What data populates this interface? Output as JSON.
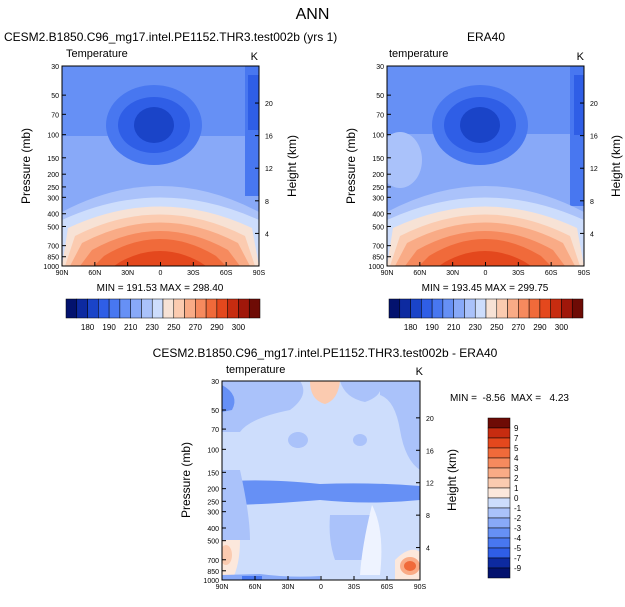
{
  "page": {
    "title": "ANN"
  },
  "colors": {
    "temp_scale": [
      "#03126e",
      "#0d2aa0",
      "#1a44c8",
      "#2f5ee6",
      "#4877f0",
      "#6690f5",
      "#88a9f8",
      "#aac2fa",
      "#cdddfc",
      "#f7e2d5",
      "#fbcbb0",
      "#f9ab86",
      "#f68a5e",
      "#f06a3a",
      "#e4481d",
      "#c72c10",
      "#a0170a",
      "#6e0b05"
    ],
    "diff_scale": [
      "#03126e",
      "#0d2aa0",
      "#1a44c8",
      "#2f5ee6",
      "#4877f0",
      "#6690f5",
      "#88a9f8",
      "#aac2fa",
      "#cdddfc",
      "#eef3ff",
      "#fce8dc",
      "#fbcbb0",
      "#f9ab86",
      "#f68a5e",
      "#f06a3a",
      "#e4481d",
      "#c72c10",
      "#6e0b05"
    ]
  },
  "chart_data": [
    {
      "type": "contour",
      "title": "CESM2.B1850.C96_mg17.intel.PE1152.THR3.test002b (yrs 1)",
      "subtitle": "Temperature",
      "units": "K",
      "xlabel": "",
      "ylabel": "Pressure (mb)",
      "ylabel_right": "Height (km)",
      "x_ticks": [
        "90N",
        "60N",
        "30N",
        "0",
        "30S",
        "60S",
        "90S"
      ],
      "y_ticks": [
        "30",
        "50",
        "70",
        "100",
        "150",
        "200",
        "250",
        "300",
        "400",
        "500",
        "700",
        "850",
        "1000"
      ],
      "height_ticks": [
        "20",
        "16",
        "12",
        "8",
        "4"
      ],
      "min_max": "MIN = 191.53  MAX = 298.40",
      "colorbar_labels": [
        "180",
        "190",
        "210",
        "230",
        "250",
        "270",
        "290",
        "300"
      ]
    },
    {
      "type": "contour",
      "title": "ERA40",
      "subtitle": "temperature",
      "units": "K",
      "xlabel": "",
      "ylabel": "Pressure (mb)",
      "ylabel_right": "Height (km)",
      "x_ticks": [
        "90N",
        "60N",
        "30N",
        "0",
        "30S",
        "60S",
        "90S"
      ],
      "y_ticks": [
        "30",
        "50",
        "70",
        "100",
        "150",
        "200",
        "250",
        "300",
        "400",
        "500",
        "700",
        "850",
        "1000"
      ],
      "height_ticks": [
        "20",
        "16",
        "12",
        "8",
        "4"
      ],
      "min_max": "MIN = 193.45  MAX = 299.75",
      "colorbar_labels": [
        "180",
        "190",
        "210",
        "230",
        "250",
        "270",
        "290",
        "300"
      ]
    },
    {
      "type": "contour",
      "title": "CESM2.B1850.C96_mg17.intel.PE1152.THR3.test002b - ERA40",
      "subtitle": "temperature",
      "units": "K",
      "xlabel": "",
      "ylabel": "Pressure (mb)",
      "ylabel_right": "Height (km)",
      "x_ticks": [
        "90N",
        "60N",
        "30N",
        "0",
        "30S",
        "60S",
        "90S"
      ],
      "y_ticks": [
        "30",
        "50",
        "70",
        "100",
        "150",
        "200",
        "250",
        "300",
        "400",
        "500",
        "700",
        "850",
        "1000"
      ],
      "height_ticks": [
        "20",
        "16",
        "12",
        "8",
        "4"
      ],
      "min_max": "MIN =  -8.56  MAX =   4.23",
      "colorbar_labels": [
        "9",
        "7",
        "5",
        "4",
        "3",
        "2",
        "1",
        "0",
        "-1",
        "-2",
        "-3",
        "-4",
        "-5",
        "-7",
        "-9"
      ]
    }
  ]
}
